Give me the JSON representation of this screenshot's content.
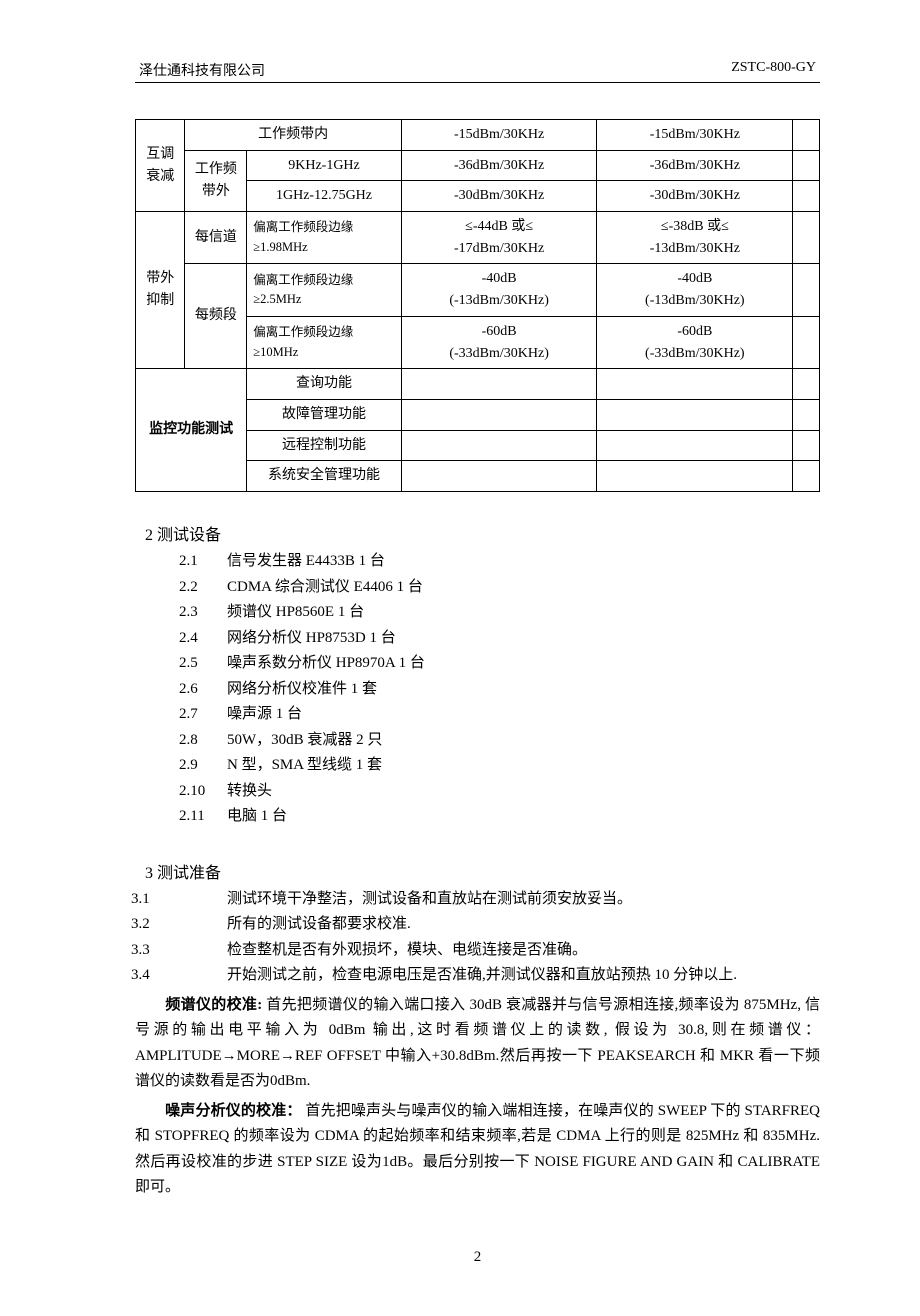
{
  "header": {
    "company": "泽仕通科技有限公司",
    "doc_id": "ZSTC-800-GY"
  },
  "table": {
    "col_widths": [
      "48px",
      "60px",
      "150px",
      "190px",
      "190px",
      "26px"
    ],
    "rows": [
      {
        "cells": [
          {
            "t": "互调\n衰减",
            "rs": 3
          },
          {
            "t": "工作频带内",
            "cs": 2
          },
          {
            "t": "-15dBm/30KHz"
          },
          {
            "t": "-15dBm/30KHz"
          },
          {
            "t": ""
          }
        ]
      },
      {
        "cells": [
          {
            "t": "工作频\n带外",
            "rs": 2
          },
          {
            "t": "9KHz-1GHz"
          },
          {
            "t": "-36dBm/30KHz"
          },
          {
            "t": "-36dBm/30KHz"
          },
          {
            "t": ""
          }
        ]
      },
      {
        "cells": [
          {
            "t": "1GHz-12.75GHz"
          },
          {
            "t": "-30dBm/30KHz"
          },
          {
            "t": "-30dBm/30KHz"
          },
          {
            "t": ""
          }
        ]
      },
      {
        "cells": [
          {
            "t": "带外\n抑制",
            "rs": 3
          },
          {
            "t": "每信道"
          },
          {
            "t": "偏离工作频段边缘\n≥1.98MHz",
            "small": true,
            "align": "left"
          },
          {
            "t": "≤-44dB 或≤\n-17dBm/30KHz"
          },
          {
            "t": "≤-38dB 或≤\n-13dBm/30KHz"
          },
          {
            "t": ""
          }
        ]
      },
      {
        "cells": [
          {
            "t": "每频段",
            "rs": 2
          },
          {
            "t": "偏离工作频段边缘\n≥2.5MHz",
            "small": true,
            "align": "left"
          },
          {
            "t": "-40dB\n(-13dBm/30KHz)"
          },
          {
            "t": "-40dB\n(-13dBm/30KHz)"
          },
          {
            "t": ""
          }
        ]
      },
      {
        "cells": [
          {
            "t": "偏离工作频段边缘\n≥10MHz",
            "small": true,
            "align": "left"
          },
          {
            "t": "-60dB\n(-33dBm/30KHz)"
          },
          {
            "t": "-60dB\n(-33dBm/30KHz)"
          },
          {
            "t": ""
          }
        ]
      },
      {
        "cells": [
          {
            "t": "监控功能测试",
            "rs": 4,
            "cs": 2,
            "bold": true
          },
          {
            "t": "查询功能"
          },
          {
            "t": ""
          },
          {
            "t": ""
          },
          {
            "t": ""
          }
        ]
      },
      {
        "cells": [
          {
            "t": "故障管理功能"
          },
          {
            "t": ""
          },
          {
            "t": ""
          },
          {
            "t": ""
          }
        ]
      },
      {
        "cells": [
          {
            "t": "远程控制功能"
          },
          {
            "t": ""
          },
          {
            "t": ""
          },
          {
            "t": ""
          }
        ]
      },
      {
        "cells": [
          {
            "t": "系统安全管理功能"
          },
          {
            "t": ""
          },
          {
            "t": ""
          },
          {
            "t": ""
          }
        ]
      }
    ]
  },
  "section2": {
    "title": "2  测试设备",
    "items": [
      {
        "n": "2.1",
        "t": "信号发生器 E4433B 1 台"
      },
      {
        "n": "2.2",
        "t": "CDMA 综合测试仪 E4406 1 台"
      },
      {
        "n": "2.3",
        "t": "频谱仪 HP8560E    1 台"
      },
      {
        "n": "2.4",
        "t": "网络分析仪 HP8753D  1 台"
      },
      {
        "n": "2.5",
        "t": "噪声系数分析仪 HP8970A 1 台"
      },
      {
        "n": "2.6",
        "t": "网络分析仪校准件 1 套"
      },
      {
        "n": "2.7",
        "t": "噪声源 1 台"
      },
      {
        "n": "2.8",
        "t": "50W，30dB 衰减器 2 只"
      },
      {
        "n": "2.9",
        "t": "N 型，SMA 型线缆 1 套"
      },
      {
        "n": "2.10",
        "t": "转换头"
      },
      {
        "n": "2.11",
        "t": "电脑 1 台"
      }
    ]
  },
  "section3": {
    "title": "3  测试准备",
    "items": [
      {
        "n": "3.1",
        "t": "测试环境干净整洁，测试设备和直放站在测试前须安放妥当。"
      },
      {
        "n": "3.2",
        "t": "所有的测试设备都要求校准."
      },
      {
        "n": "3.3",
        "t": "检查整机是否有外观损坏，模块、电缆连接是否准确。"
      },
      {
        "n": "3.4",
        "t": "开始测试之前，检查电源电压是否准确,并测试仪器和直放站预热 10 分钟以上."
      }
    ]
  },
  "para1": {
    "lead": "频谱仪的校准:",
    "body": "首先把频谱仪的输入端口接入 30dB 衰减器并与信号源相连接,频率设为 875MHz, 信号源的输出电平输入为 0dBm 输出,这时看频谱仪上的读数, 假设为 30.8,则在频谱仪：AMPLITUDE→MORE→REF OFFSET 中输入+30.8dBm.然后再按一下 PEAKSEARCH 和 MKR 看一下频谱仪的读数看是否为0dBm."
  },
  "para2": {
    "lead": "噪声分析仪的校准：",
    "body": "首先把噪声头与噪声仪的输入端相连接，在噪声仪的 SWEEP 下的 STARFREQ 和 STOPFREQ 的频率设为 CDMA 的起始频率和结束频率,若是 CDMA 上行的则是 825MHz 和 835MHz.然后再设校准的步进 STEP SIZE 设为1dB。最后分别按一下 NOISE FIGURE AND GAIN 和 CALIBRATE 即可。"
  },
  "footer": {
    "page": "2"
  }
}
